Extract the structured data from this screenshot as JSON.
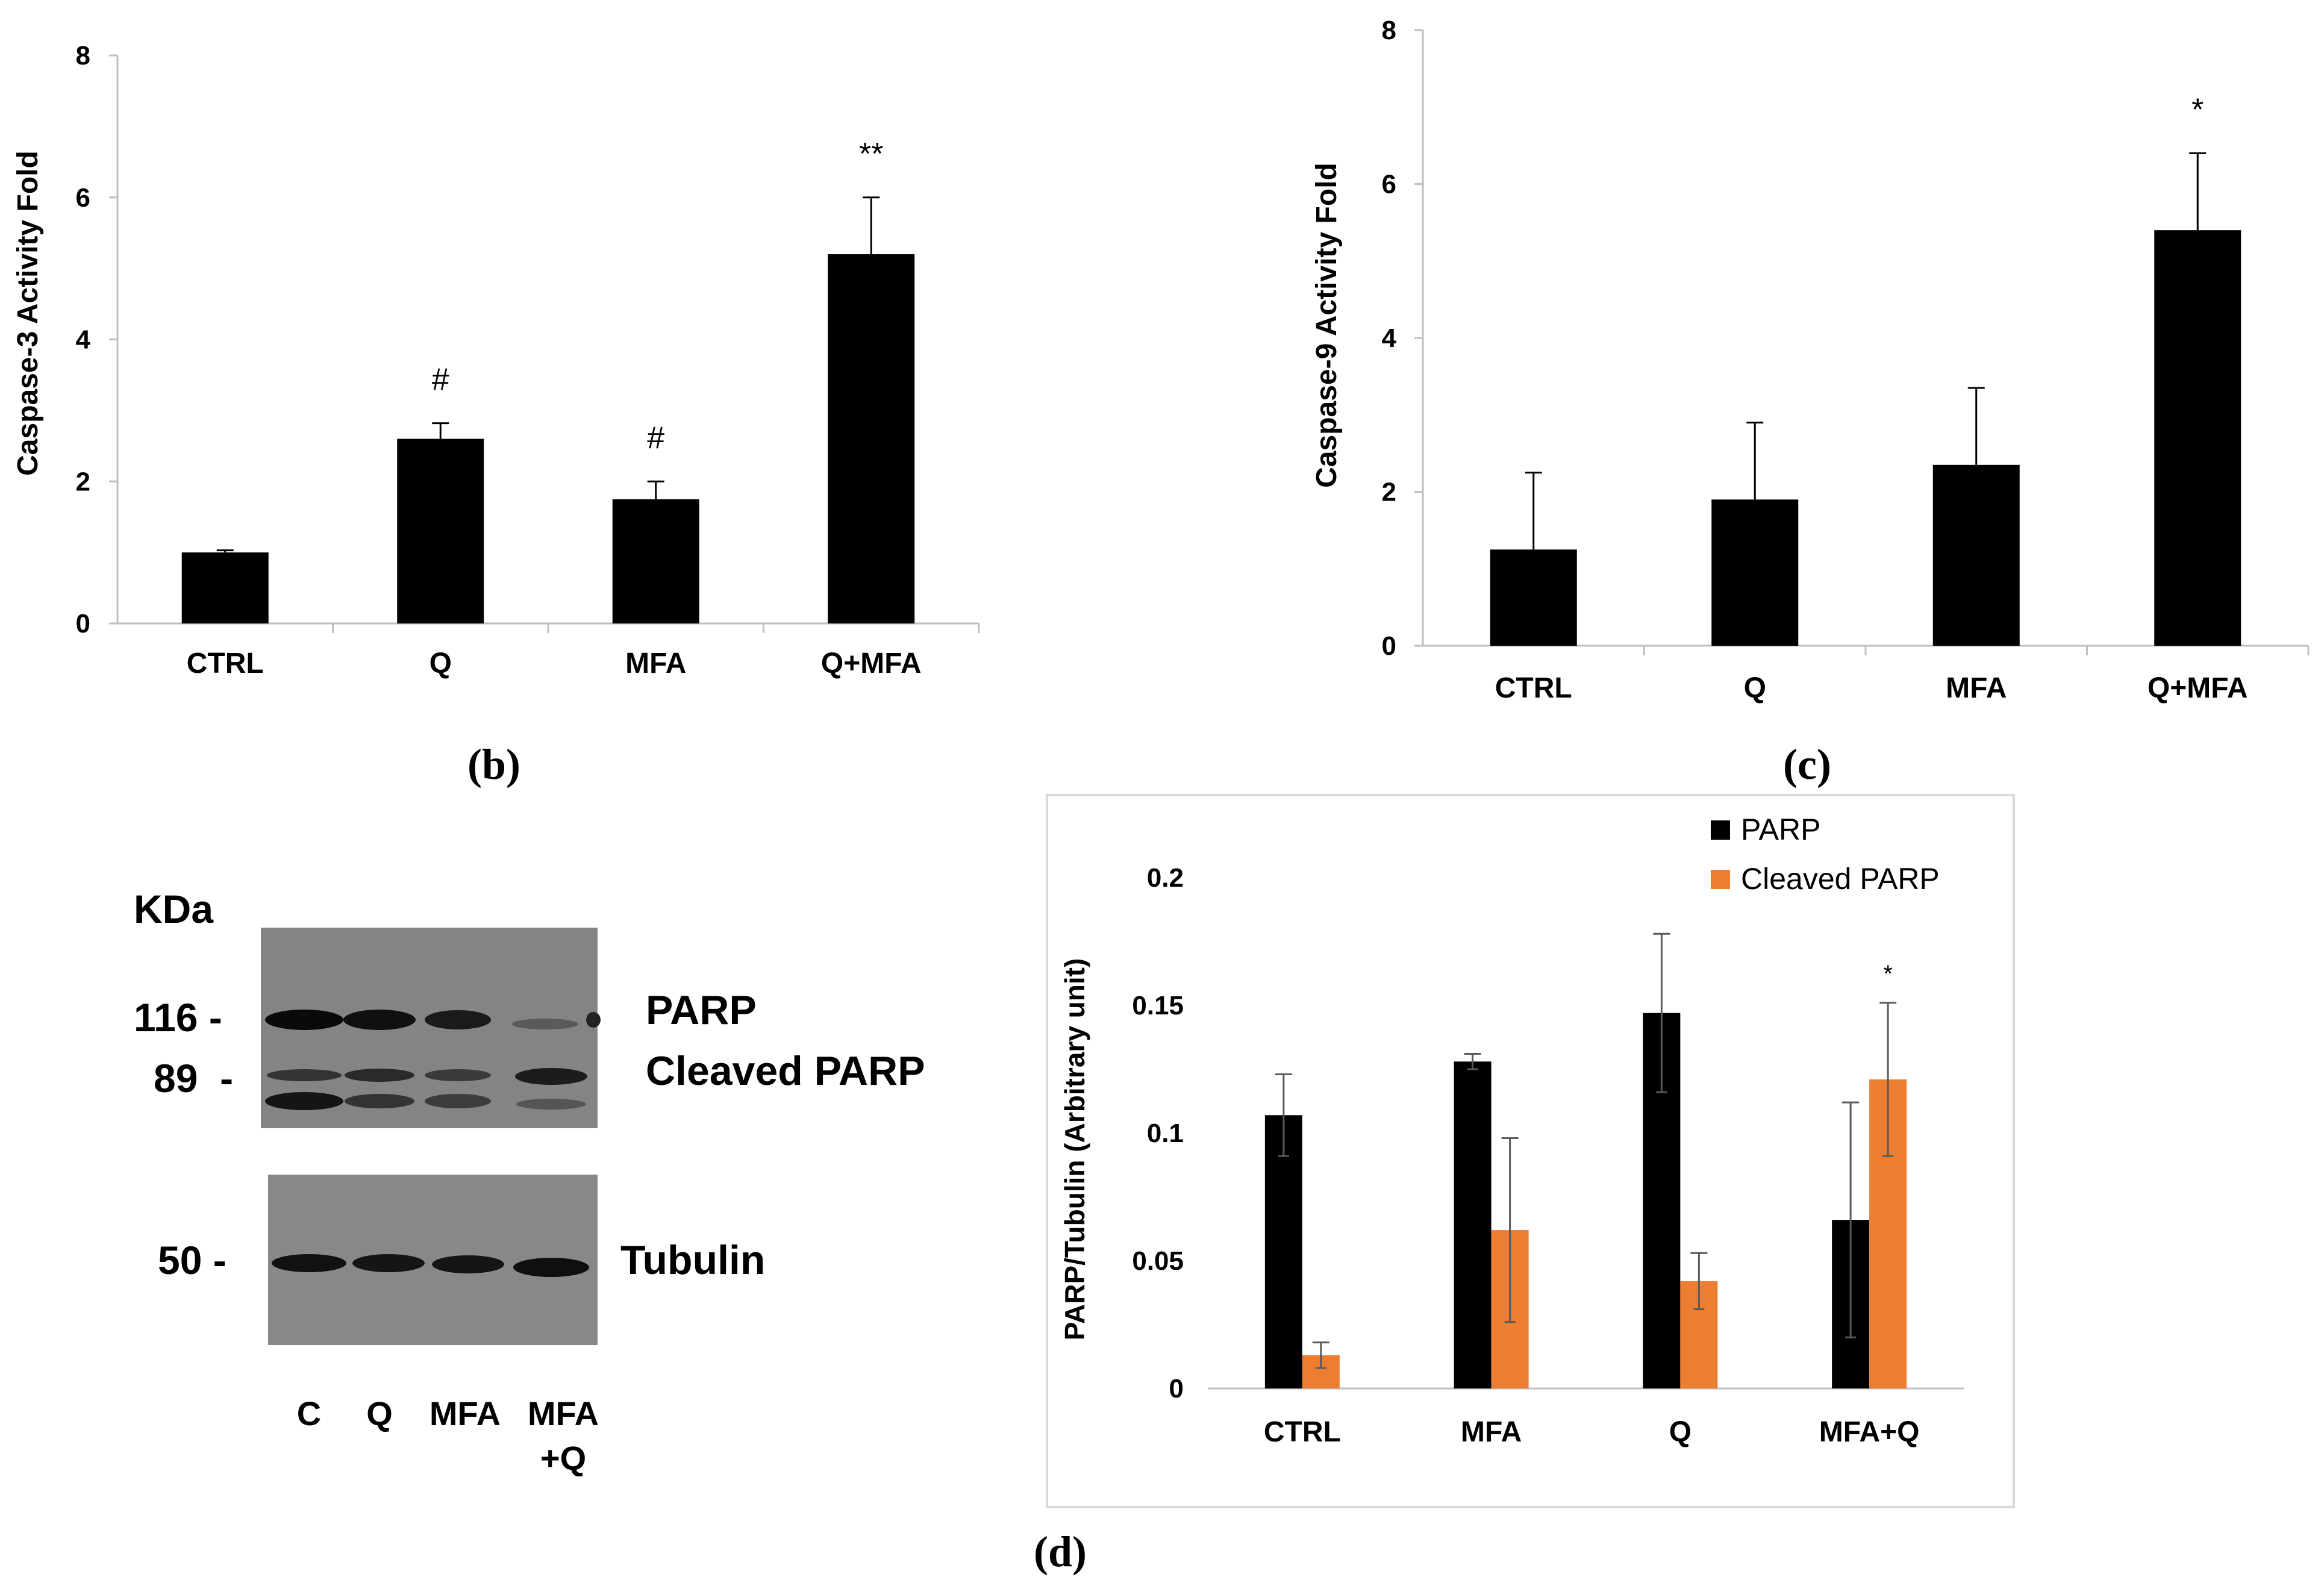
{
  "chart_data": [
    {
      "id": "b",
      "type": "bar",
      "panel_label": "(b)",
      "ylabel": "Caspase-3 Activity Fold",
      "xlabel": "",
      "ylim": [
        0,
        8
      ],
      "yticks": [
        "0",
        "2",
        "4",
        "6",
        "8"
      ],
      "categories": [
        "CTRL",
        "Q",
        "MFA",
        "Q+MFA"
      ],
      "series": [
        {
          "name": "Caspase-3",
          "color": "#000000",
          "values": [
            1.0,
            2.6,
            1.75,
            5.2
          ],
          "errors": [
            0.03,
            0.22,
            0.25,
            0.8
          ]
        }
      ],
      "annotations": [
        "",
        "#",
        "#",
        "**"
      ]
    },
    {
      "id": "c",
      "type": "bar",
      "panel_label": "(c)",
      "ylabel": "Caspase-9 Activity Fold",
      "xlabel": "",
      "ylim": [
        0,
        8
      ],
      "yticks": [
        "0",
        "2",
        "4",
        "6",
        "8"
      ],
      "categories": [
        "CTRL",
        "Q",
        "MFA",
        "Q+MFA"
      ],
      "series": [
        {
          "name": "Caspase-9",
          "color": "#000000",
          "values": [
            1.25,
            1.9,
            2.35,
            5.4
          ],
          "errors": [
            1.0,
            1.0,
            1.0,
            1.0
          ]
        }
      ],
      "annotations": [
        "",
        "",
        "",
        "*"
      ]
    },
    {
      "id": "d",
      "type": "bar",
      "panel_label": "(d)",
      "ylabel": "PARP/Tubulin (Arbitrary unit)",
      "xlabel": "",
      "ylim": [
        0,
        0.2
      ],
      "yticks": [
        "0",
        "0.05",
        "0.1",
        "0.15",
        "0.2"
      ],
      "categories": [
        "CTRL",
        "MFA",
        "Q",
        "MFA+Q"
      ],
      "series": [
        {
          "name": "PARP",
          "color": "#000000",
          "values": [
            0.107,
            0.128,
            0.147,
            0.066
          ],
          "errors": [
            0.016,
            0.003,
            0.031,
            0.046
          ]
        },
        {
          "name": "Cleaved PARP",
          "color": "#ed7d31",
          "values": [
            0.013,
            0.062,
            0.042,
            0.121
          ],
          "errors": [
            0.005,
            0.036,
            0.011,
            0.03
          ]
        }
      ],
      "legend_position": "top-right",
      "annotations": [
        "",
        "",
        "",
        "*"
      ]
    }
  ],
  "western_blot": {
    "unit_label": "KDa",
    "markers": [
      "116 -",
      "89  -",
      "50 -"
    ],
    "band_labels": [
      "PARP",
      "Cleaved PARP",
      "Tubulin"
    ],
    "lanes": [
      "C",
      "Q",
      "MFA",
      "MFA"
    ],
    "lane_line2": [
      "",
      "",
      "",
      "+Q"
    ]
  }
}
